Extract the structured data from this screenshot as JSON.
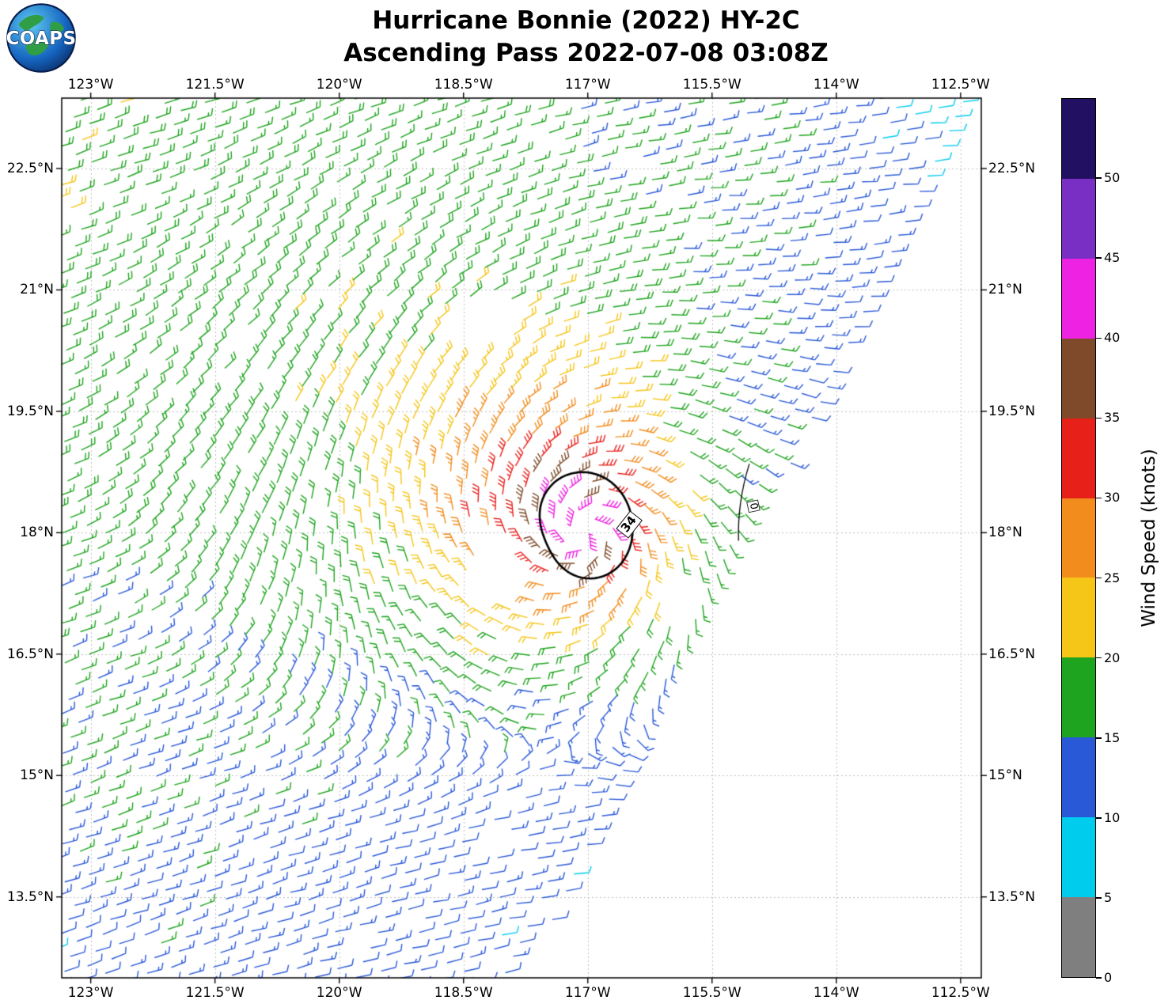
{
  "logo": {
    "text": "COAPS"
  },
  "title": {
    "line1": "Hurricane Bonnie (2022) HY-2C",
    "line2": "Ascending Pass 2022-07-08 03:08Z"
  },
  "chart_data": {
    "type": "wind_barb_map",
    "title": "Hurricane Bonnie (2022) HY-2C — Ascending Pass 2022-07-08 03:08Z",
    "grid": true,
    "x_axis": {
      "ticks_deg_west": [
        123,
        121.5,
        120,
        118.5,
        117,
        115.5,
        114,
        112.5
      ],
      "tick_labels": [
        "123°W",
        "121.5°W",
        "120°W",
        "118.5°W",
        "117°W",
        "115.5°W",
        "114°W",
        "112.5°W"
      ],
      "range_deg_west": [
        123.35,
        112.25
      ]
    },
    "y_axis": {
      "ticks_deg_north": [
        22.5,
        21,
        19.5,
        18,
        16.5,
        15,
        13.5
      ],
      "tick_labels": [
        "22.5°N",
        "21°N",
        "19.5°N",
        "18°N",
        "16.5°N",
        "15°N",
        "13.5°N"
      ],
      "range_deg_north": [
        12.5,
        23.37
      ]
    },
    "colorbar": {
      "label": "Wind Speed (knots)",
      "tick_values": [
        0,
        5,
        10,
        15,
        20,
        25,
        30,
        35,
        40,
        45,
        50
      ],
      "range": [
        0,
        55
      ],
      "bins": [
        {
          "range": [
            0,
            5
          ],
          "color": "#7f7f7f"
        },
        {
          "range": [
            5,
            10
          ],
          "color": "#00ccee"
        },
        {
          "range": [
            10,
            15
          ],
          "color": "#2a59d8"
        },
        {
          "range": [
            15,
            20
          ],
          "color": "#1ea41e"
        },
        {
          "range": [
            20,
            25
          ],
          "color": "#f5c518"
        },
        {
          "range": [
            25,
            30
          ],
          "color": "#f28c1c"
        },
        {
          "range": [
            30,
            35
          ],
          "color": "#e8201a"
        },
        {
          "range": [
            35,
            40
          ],
          "color": "#7e4a2a"
        },
        {
          "range": [
            40,
            45
          ],
          "color": "#ee22e2"
        },
        {
          "range": [
            45,
            50
          ],
          "color": "#7a2fc4"
        },
        {
          "range": [
            50,
            55
          ],
          "color": "#221163"
        }
      ]
    },
    "storm": {
      "name": "Bonnie",
      "center_estimate": {
        "lon_w": 117.05,
        "lat": 18.0
      },
      "peak_wind_bin_kt": [
        40,
        45
      ]
    },
    "contours": [
      {
        "label": "34",
        "level_kt": 34,
        "center": {
          "lon_w": 117.07,
          "lat": 18.02
        },
        "mean_radius_deg": 0.6,
        "wobble": [
          [
            1,
            0.1,
            -0.7
          ],
          [
            2,
            0.06,
            0.5
          ]
        ],
        "label_pos": {
          "lon_w": 116.5,
          "lat": 18.1
        },
        "label_rotation_deg": -52
      },
      {
        "label": "0",
        "level_kt": 0,
        "label_pos": {
          "lon_w": 115.0,
          "lat": 18.33
        },
        "label_rotation_deg": 78,
        "line": {
          "from": {
            "lon_w": 115.05,
            "lat": 18.85
          },
          "to": {
            "lon_w": 115.18,
            "lat": 17.9
          }
        }
      }
    ],
    "wind_field": {
      "grid_ref": {
        "lon_w": 118.0,
        "lat": 18.0
      },
      "grid_rotation_deg": 25,
      "along_track_spacing_deg": 0.205,
      "cross_track_spacing_deg": 0.23,
      "swath_right_edge": {
        "lon_w_at_13n": 117.55,
        "dlon_per_dlat": -0.51
      },
      "center": {
        "lon_w": 117.05,
        "lat": 18.0
      },
      "vortex_amp_kt": 29.5,
      "core_radius_deg": 0.3,
      "decay_scale_deg": 1.0,
      "inflow_deg": -18,
      "asymmetry": {
        "toward_deg": 315,
        "amount": 0.35
      },
      "background": {
        "base_kt": 13,
        "dlat_coef": 0.45,
        "dlon_coef": 0.55,
        "far_dir_from_deg": 80
      },
      "corner_lulls": [
        {
          "lon_w": 112.3,
          "lat": 23.4,
          "radius_deg": 2.0,
          "max_reduction_kt": 6
        },
        {
          "lon_w": 123.35,
          "lat": 12.5,
          "radius_deg": 1.3,
          "max_reduction_kt": 5
        }
      ],
      "gaps": [
        {
          "lon_w": 118.1,
          "lat": 17.4,
          "rx": 0.38,
          "ry": 0.33
        },
        {
          "lon_w": 118.35,
          "lat": 20.55,
          "rx": 0.45,
          "ry": 0.35
        },
        {
          "lon_w": 115.85,
          "lat": 17.35,
          "rx": 0.3,
          "ry": 0.25
        }
      ],
      "dropout_fraction": 0.05
    }
  }
}
